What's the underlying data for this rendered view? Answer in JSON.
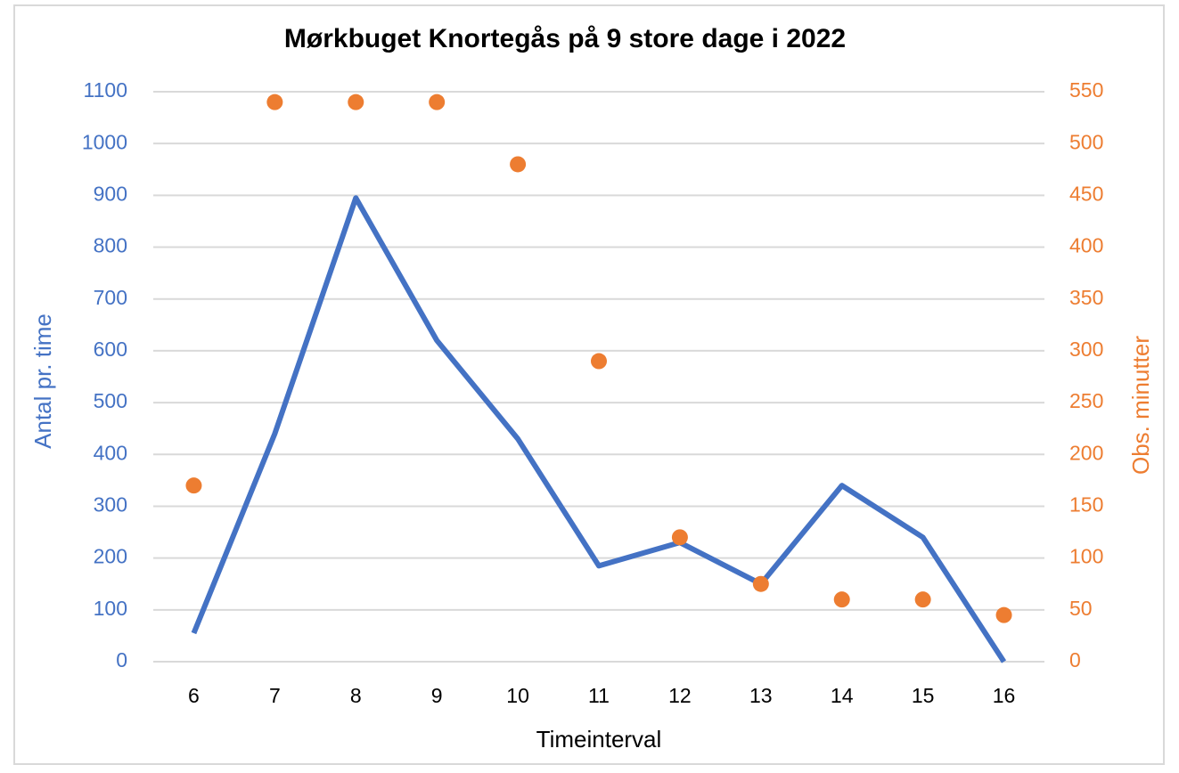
{
  "chart_data": {
    "type": "line",
    "title": "Mørkbuget Knortegås på 9 store dage i 2022",
    "x_label": "Timeinterval",
    "y_label": "Antal pr. time",
    "y2_label": "Obs. minutter",
    "categories": [
      "6",
      "7",
      "8",
      "9",
      "10",
      "11",
      "12",
      "13",
      "14",
      "15",
      "16"
    ],
    "series": [
      {
        "name": "Antal pr. time",
        "type": "line",
        "color": "#4472c4",
        "values": [
          55,
          440,
          895,
          620,
          430,
          185,
          230,
          150,
          340,
          240,
          0
        ]
      },
      {
        "name": "Obs. minutter",
        "type": "scatter",
        "axis": "y2",
        "color": "#ed7d31",
        "values": [
          170,
          540,
          540,
          540,
          480,
          290,
          120,
          75,
          60,
          60,
          45
        ]
      }
    ],
    "ylim": [
      0,
      1100
    ],
    "yticks": [
      0,
      100,
      200,
      300,
      400,
      500,
      600,
      700,
      800,
      900,
      1000,
      1100
    ],
    "y2lim": [
      0,
      550
    ],
    "y2ticks": [
      0,
      50,
      100,
      150,
      200,
      250,
      300,
      350,
      400,
      450,
      500,
      550
    ],
    "grid": true
  }
}
